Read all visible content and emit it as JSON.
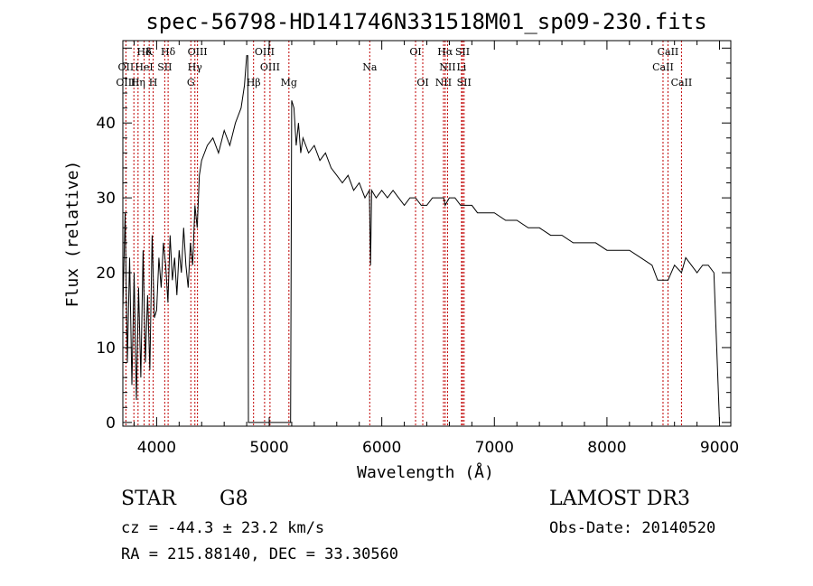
{
  "chart_data": {
    "type": "line",
    "title": "spec-56798-HD141746N331518M01_sp09-230.fits",
    "xlabel": "Wavelength (Å)",
    "ylabel": "Flux (relative)",
    "xlim": [
      3700,
      9100
    ],
    "ylim": [
      -0.5,
      51
    ],
    "x_ticks": [
      4000,
      5000,
      6000,
      7000,
      8000,
      9000
    ],
    "y_ticks": [
      0,
      10,
      20,
      30,
      40
    ],
    "grid": false,
    "series": [
      {
        "x": [
          3700,
          3720,
          3740,
          3760,
          3780,
          3800,
          3820,
          3840,
          3860,
          3880,
          3900,
          3920,
          3940,
          3960,
          3980,
          4000,
          4020,
          4040,
          4060,
          4080,
          4100,
          4120,
          4140,
          4160,
          4180,
          4200,
          4220,
          4240,
          4260,
          4280,
          4300,
          4320,
          4340,
          4360,
          4380,
          4400,
          4450,
          4500,
          4550,
          4600,
          4650,
          4700,
          4750,
          4780,
          4800,
          4810,
          4815,
          4830,
          4840,
          4850,
          4860,
          4870,
          4900,
          4950,
          5000,
          5050,
          5100,
          5150,
          5180,
          5190,
          5200,
          5220,
          5240,
          5260,
          5280,
          5300,
          5350,
          5400,
          5450,
          5500,
          5550,
          5600,
          5650,
          5700,
          5750,
          5800,
          5850,
          5890,
          5900,
          5910,
          5950,
          6000,
          6050,
          6100,
          6150,
          6200,
          6250,
          6300,
          6350,
          6400,
          6450,
          6500,
          6550,
          6563,
          6600,
          6650,
          6700,
          6750,
          6800,
          6850,
          6900,
          6950,
          7000,
          7100,
          7200,
          7300,
          7400,
          7500,
          7600,
          7700,
          7800,
          7900,
          8000,
          8100,
          8200,
          8300,
          8400,
          8450,
          8498,
          8542,
          8600,
          8662,
          8700,
          8750,
          8800,
          8850,
          8900,
          8950,
          9000
        ],
        "y": [
          15,
          28,
          8,
          22,
          5,
          20,
          3,
          18,
          6,
          23,
          8,
          17,
          7,
          25,
          14,
          15,
          22,
          18,
          24,
          21,
          16,
          25,
          19,
          22,
          17,
          23,
          20,
          26,
          21,
          18,
          24,
          21,
          29,
          26,
          33,
          35,
          37,
          38,
          36,
          39,
          37,
          40,
          42,
          45,
          49,
          49,
          0,
          0,
          0,
          0,
          0,
          0,
          0,
          0,
          0,
          0,
          0,
          0,
          0,
          0,
          43,
          42,
          37,
          40,
          36,
          38,
          36,
          37,
          35,
          36,
          34,
          33,
          32,
          33,
          31,
          32,
          30,
          31,
          21,
          31,
          30,
          31,
          30,
          31,
          30,
          29,
          30,
          30,
          29,
          29,
          30,
          30,
          30,
          29,
          30,
          30,
          29,
          29,
          29,
          28,
          28,
          28,
          28,
          27,
          27,
          26,
          26,
          25,
          25,
          24,
          24,
          24,
          23,
          23,
          23,
          22,
          21,
          19,
          19,
          19,
          21,
          20,
          22,
          21,
          20,
          21,
          21,
          20,
          0
        ]
      }
    ],
    "annotations": [
      {
        "label": "Hδ",
        "x": 3889,
        "row": 1
      },
      {
        "label": "K",
        "x": 3934,
        "row": 1
      },
      {
        "label": "Hδ",
        "x": 4102,
        "row": 1
      },
      {
        "label": "OIII",
        "x": 4363,
        "row": 1
      },
      {
        "label": "OIII",
        "x": 4959,
        "row": 1
      },
      {
        "label": "OI",
        "x": 6300,
        "row": 1
      },
      {
        "label": "Hα",
        "x": 6563,
        "row": 1
      },
      {
        "label": "SII",
        "x": 6717,
        "row": 1
      },
      {
        "label": "CaII",
        "x": 8542,
        "row": 1
      },
      {
        "label": "OII",
        "x": 3727,
        "row": 2
      },
      {
        "label": "HeI",
        "x": 3889,
        "row": 2
      },
      {
        "label": "SII",
        "x": 4072,
        "row": 2
      },
      {
        "label": "Hγ",
        "x": 4340,
        "row": 2
      },
      {
        "label": "OIII",
        "x": 5007,
        "row": 2
      },
      {
        "label": "Na",
        "x": 5893,
        "row": 2
      },
      {
        "label": "NII",
        "x": 6584,
        "row": 2
      },
      {
        "label": "Li",
        "x": 6708,
        "row": 2
      },
      {
        "label": "CaII",
        "x": 8498,
        "row": 2
      },
      {
        "label": "OIII",
        "x": 3727,
        "row": 3
      },
      {
        "label": "Hη",
        "x": 3835,
        "row": 3
      },
      {
        "label": "H",
        "x": 3969,
        "row": 3
      },
      {
        "label": "G",
        "x": 4304,
        "row": 3
      },
      {
        "label": "Hβ",
        "x": 4861,
        "row": 3
      },
      {
        "label": "Mg",
        "x": 5175,
        "row": 3
      },
      {
        "label": "OI",
        "x": 6364,
        "row": 3
      },
      {
        "label": "NII",
        "x": 6548,
        "row": 3
      },
      {
        "label": "SII",
        "x": 6731,
        "row": 3
      },
      {
        "label": "CaII",
        "x": 8662,
        "row": 3
      }
    ],
    "line_markers": [
      3727,
      3798,
      3835,
      3889,
      3934,
      3969,
      4072,
      4102,
      4304,
      4340,
      4363,
      4861,
      4959,
      5007,
      5175,
      5893,
      6300,
      6364,
      6548,
      6563,
      6584,
      6708,
      6717,
      6731,
      8498,
      8542,
      8662
    ],
    "colors": {
      "spectrum": "#000000",
      "markers": "#c00000",
      "axes": "#000000"
    }
  },
  "info": {
    "object_type": "STAR",
    "subclass": "G8",
    "redshift_line": "cz = -44.3 ± 23.2 km/s",
    "coords_line": "RA = 215.88140, DEC =  33.30560",
    "survey": "LAMOST DR3",
    "obs_date": "Obs-Date: 20140520"
  }
}
